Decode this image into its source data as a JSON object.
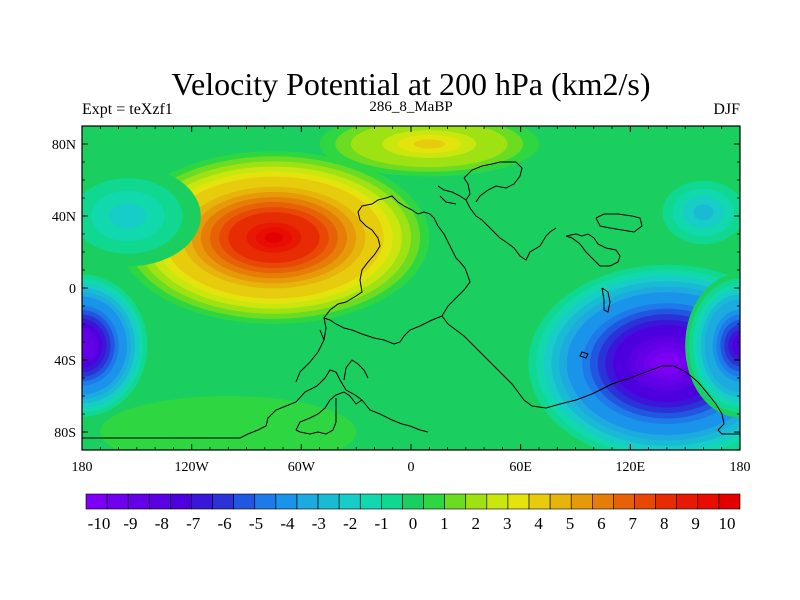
{
  "chart_data": {
    "type": "heatmap",
    "title": "Velocity Potential at 200 hPa (km2/s)",
    "left_label": "Expt = teXzf1",
    "center_label": "286_8_MaBP",
    "right_label": "DJF",
    "x_ticks": [
      {
        "value": -180,
        "label": "180"
      },
      {
        "value": -120,
        "label": "120W"
      },
      {
        "value": -60,
        "label": "60W"
      },
      {
        "value": 0,
        "label": "0"
      },
      {
        "value": 60,
        "label": "60E"
      },
      {
        "value": 120,
        "label": "120E"
      },
      {
        "value": 180,
        "label": "180"
      }
    ],
    "y_ticks": [
      {
        "value": 80,
        "label": "80N"
      },
      {
        "value": 40,
        "label": "40N"
      },
      {
        "value": 0,
        "label": "0"
      },
      {
        "value": -40,
        "label": "40S"
      },
      {
        "value": -80,
        "label": "80S"
      }
    ],
    "xlim": [
      -180,
      180
    ],
    "ylim": [
      -90,
      90
    ],
    "colorbar": {
      "labels": [
        "-10",
        "-9",
        "-8",
        "-7",
        "-6",
        "-5",
        "-4",
        "-3",
        "-2",
        "-1",
        "0",
        "1",
        "2",
        "3",
        "4",
        "5",
        "6",
        "7",
        "8",
        "9",
        "10"
      ],
      "colors": [
        "#7e00f4",
        "#6f00ee",
        "#6300e8",
        "#5a00e3",
        "#4d00dd",
        "#3a16d9",
        "#2b33d6",
        "#2156e0",
        "#1d7ae8",
        "#1a93ea",
        "#1caadf",
        "#18bbd3",
        "#17cdc7",
        "#12d8ad",
        "#10d890",
        "#1acf60",
        "#2ed641",
        "#6cdc22",
        "#9fe213",
        "#c9e70e",
        "#e4e30e",
        "#e6cc0c",
        "#e6b40a",
        "#e69a09",
        "#e67d07",
        "#e76106",
        "#e84705",
        "#e72c04",
        "#e81903",
        "#e80c03",
        "#e30000"
      ]
    },
    "field_centers": [
      {
        "lon": -75,
        "lat": 28,
        "value": 10.5,
        "rx": 85,
        "ry": 48
      },
      {
        "lon": 140,
        "lat": -42,
        "value": -11,
        "rx": 80,
        "ry": 58
      },
      {
        "lon": -180,
        "lat": -32,
        "value": -10,
        "rx": 38,
        "ry": 42
      },
      {
        "lon": 180,
        "lat": -32,
        "value": -8,
        "rx": 30,
        "ry": 40
      },
      {
        "lon": 160,
        "lat": 42,
        "value": -2.5,
        "rx": 28,
        "ry": 22
      },
      {
        "lon": -155,
        "lat": 40,
        "value": -1.8,
        "rx": 40,
        "ry": 28
      },
      {
        "lon": 10,
        "lat": 80,
        "value": 4,
        "rx": 60,
        "ry": 18
      },
      {
        "lon": -100,
        "lat": -80,
        "value": 0.5,
        "rx": 70,
        "ry": 20
      }
    ]
  }
}
